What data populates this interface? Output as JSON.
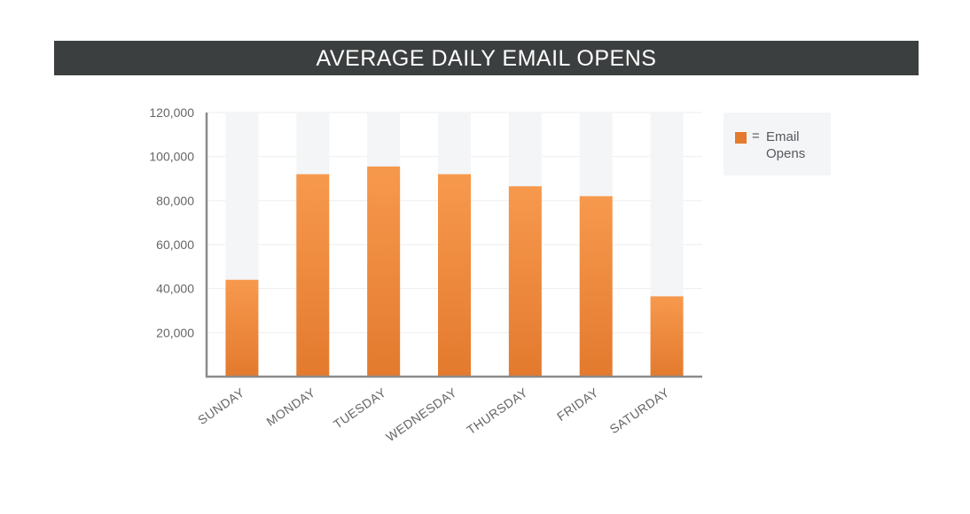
{
  "title": "AVERAGE DAILY EMAIL OPENS",
  "legend": {
    "equals": "=",
    "label": "Email Opens"
  },
  "colors": {
    "bar_top": "#f7994d",
    "bar_bottom": "#e37a2e",
    "track": "#f4f5f7",
    "axis": "#8a8a8a",
    "text": "#666666",
    "title_bg": "#3c3f3f"
  },
  "chart_data": {
    "type": "bar",
    "title": "AVERAGE DAILY EMAIL OPENS",
    "categories": [
      "SUNDAY",
      "MONDAY",
      "TUESDAY",
      "WEDNESDAY",
      "THURSDAY",
      "FRIDAY",
      "SATURDAY"
    ],
    "series": [
      {
        "name": "Email Opens",
        "values": [
          44000,
          92000,
          95500,
          92000,
          86500,
          82000,
          36500
        ]
      }
    ],
    "yticks": [
      20000,
      40000,
      60000,
      80000,
      100000,
      120000
    ],
    "ytick_labels": [
      "20,000",
      "40,000",
      "60,000",
      "80,000",
      "100,000",
      "120,000"
    ],
    "ylim": [
      0,
      120000
    ],
    "xlabel": "",
    "ylabel": "",
    "legend_position": "right",
    "grid": true
  }
}
